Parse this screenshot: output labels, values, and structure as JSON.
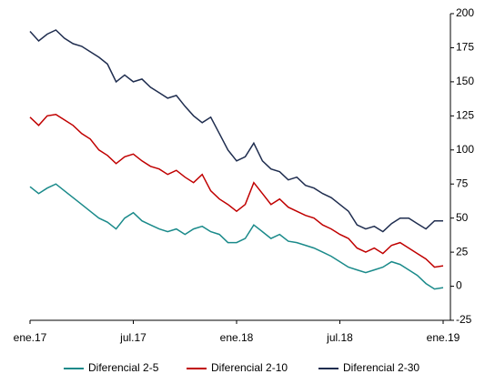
{
  "chart_data": {
    "type": "line",
    "categories": [
      "ene.17",
      null,
      null,
      null,
      null,
      null,
      null,
      null,
      null,
      null,
      null,
      null,
      "jul.17",
      null,
      null,
      null,
      null,
      null,
      null,
      null,
      null,
      null,
      null,
      null,
      "ene.18",
      null,
      null,
      null,
      null,
      null,
      null,
      null,
      null,
      null,
      null,
      null,
      "jul.18",
      null,
      null,
      null,
      null,
      null,
      null,
      null,
      null,
      null,
      null,
      null,
      "ene.19"
    ],
    "series": [
      {
        "name": "Diferencial 2-5",
        "color": "#1a8a8a",
        "values": [
          73,
          68,
          72,
          75,
          70,
          65,
          60,
          55,
          50,
          47,
          42,
          50,
          54,
          48,
          45,
          42,
          40,
          42,
          38,
          42,
          44,
          40,
          38,
          32,
          32,
          35,
          45,
          40,
          35,
          38,
          33,
          32,
          30,
          28,
          25,
          22,
          18,
          14,
          12,
          10,
          12,
          14,
          18,
          16,
          12,
          8,
          2,
          -2,
          -1
        ]
      },
      {
        "name": "Diferencial 2-10",
        "color": "#c00000",
        "values": [
          124,
          118,
          125,
          126,
          122,
          118,
          112,
          108,
          100,
          96,
          90,
          95,
          97,
          92,
          88,
          86,
          82,
          85,
          80,
          76,
          82,
          70,
          64,
          60,
          55,
          60,
          76,
          68,
          60,
          64,
          58,
          55,
          52,
          50,
          45,
          42,
          38,
          35,
          28,
          25,
          28,
          24,
          30,
          32,
          28,
          24,
          20,
          14,
          15
        ]
      },
      {
        "name": "Diferencial 2-30",
        "color": "#1f2d4f",
        "values": [
          187,
          180,
          185,
          188,
          182,
          178,
          176,
          172,
          168,
          163,
          150,
          155,
          150,
          152,
          146,
          142,
          138,
          140,
          132,
          125,
          120,
          124,
          112,
          100,
          92,
          95,
          105,
          92,
          86,
          84,
          78,
          80,
          74,
          72,
          68,
          65,
          60,
          55,
          45,
          42,
          44,
          40,
          46,
          50,
          50,
          46,
          42,
          48,
          48
        ]
      }
    ],
    "ylim": [
      -25,
      200
    ],
    "yticks": [
      -25,
      0,
      25,
      50,
      75,
      100,
      125,
      150,
      175,
      200
    ],
    "legend": "bottom"
  }
}
